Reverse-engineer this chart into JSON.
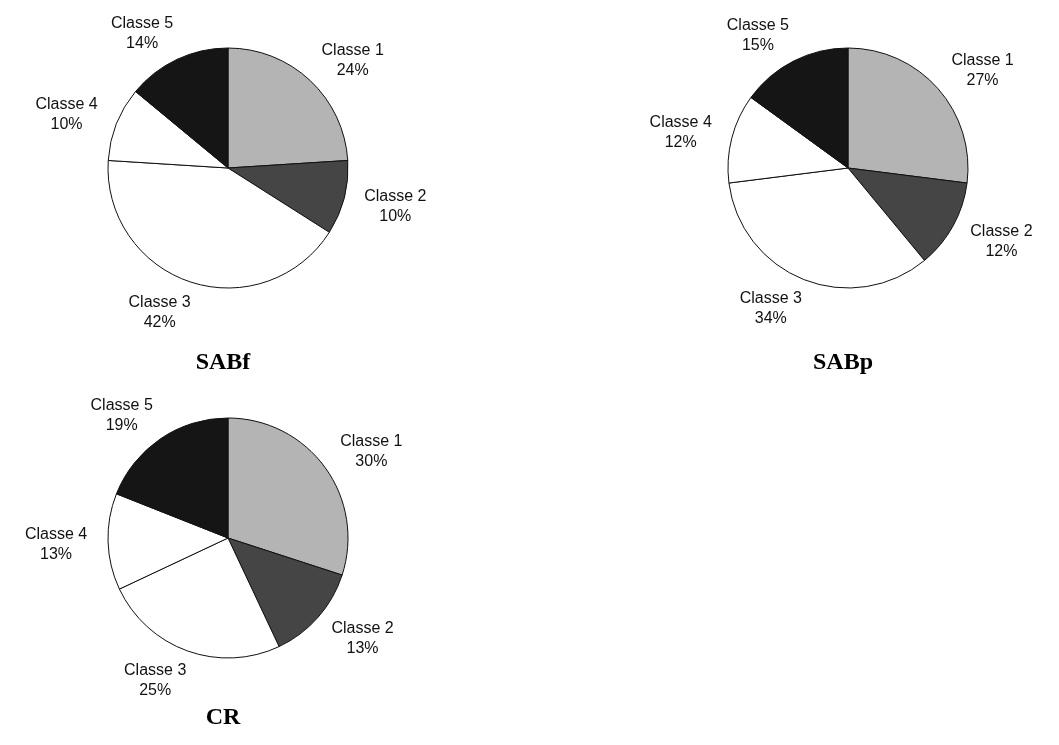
{
  "chart_data": [
    {
      "type": "pie",
      "title": "SABf",
      "categories": [
        "Classe 1",
        "Classe 2",
        "Classe 3",
        "Classe 4",
        "Classe 5"
      ],
      "values": [
        24,
        10,
        42,
        10,
        14
      ],
      "value_labels": [
        "24%",
        "10%",
        "42%",
        "10%",
        "14%"
      ],
      "colors": [
        "#b4b4b4",
        "#454545",
        "#ffffff",
        "#ffffff",
        "#151515"
      ]
    },
    {
      "type": "pie",
      "title": "SABp",
      "categories": [
        "Classe 1",
        "Classe 2",
        "Classe 3",
        "Classe 4",
        "Classe 5"
      ],
      "values": [
        27,
        12,
        34,
        12,
        15
      ],
      "value_labels": [
        "27%",
        "12%",
        "34%",
        "12%",
        "15%"
      ],
      "colors": [
        "#b4b4b4",
        "#454545",
        "#ffffff",
        "#ffffff",
        "#151515"
      ]
    },
    {
      "type": "pie",
      "title": "CR",
      "categories": [
        "Classe 1",
        "Classe 2",
        "Classe 3",
        "Classe 4",
        "Classe 5"
      ],
      "values": [
        30,
        13,
        25,
        13,
        19
      ],
      "value_labels": [
        "30%",
        "13%",
        "25%",
        "13%",
        "19%"
      ],
      "colors": [
        "#b4b4b4",
        "#454545",
        "#ffffff",
        "#ffffff",
        "#151515"
      ]
    }
  ]
}
